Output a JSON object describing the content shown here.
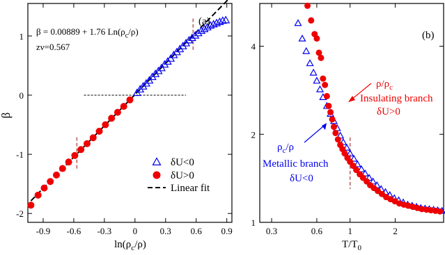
{
  "colors": {
    "metallic": "#0000ee",
    "insulating": "#ee0000",
    "fit": "#000000",
    "marker_line": "#c08080",
    "axis": "#000000"
  },
  "chart_data": [
    {
      "type": "scatter",
      "panel_label": "(a)",
      "xlabel_base": "ln(ρ",
      "xlabel_sub": "c",
      "xlabel_end": "/ρ)",
      "ylabel": "β",
      "xlim": [
        -1.05,
        0.95
      ],
      "ylim": [
        -2.15,
        1.55
      ],
      "xticks": [
        -0.9,
        -0.6,
        -0.3,
        0,
        0.3,
        0.6,
        0.9
      ],
      "xtick_labels": [
        "-0.9",
        "-0.6",
        "-0.3",
        "0",
        "0.3",
        "0.6",
        "0.9"
      ],
      "yticks": [
        -2,
        -1,
        0,
        1
      ],
      "ytick_labels": [
        "-2",
        "-1",
        "0",
        "1"
      ],
      "annotation_fit_text": "β = 0.00889 + 1.76 Ln(ρ",
      "annotation_fit_sub": "c",
      "annotation_fit_end": "/ρ)",
      "annotation_exponent": "zν=0.567",
      "fit": {
        "intercept": 0.00889,
        "slope": 1.76,
        "x_range": [
          -1.02,
          0.92
        ]
      },
      "zero_reference": {
        "y": 0,
        "x_range": [
          -0.5,
          0.5
        ]
      },
      "vertical_markers": [
        -0.57,
        0.57
      ],
      "legend": [
        {
          "label": "δU<0",
          "marker": "triangle"
        },
        {
          "label": "δU>0",
          "marker": "circle"
        },
        {
          "label": "Linear fit",
          "marker": "dashed-line"
        }
      ],
      "series": [
        {
          "name": "δU<0",
          "marker": "triangle",
          "x": [
            0.02,
            0.05,
            0.08,
            0.11,
            0.14,
            0.17,
            0.2,
            0.23,
            0.26,
            0.29,
            0.32,
            0.35,
            0.38,
            0.41,
            0.44,
            0.47,
            0.5,
            0.53,
            0.56,
            0.59,
            0.62,
            0.65,
            0.68,
            0.71,
            0.74,
            0.77,
            0.8,
            0.83,
            0.86,
            0.89
          ],
          "y": [
            0.04,
            0.1,
            0.15,
            0.2,
            0.25,
            0.31,
            0.36,
            0.41,
            0.46,
            0.52,
            0.57,
            0.62,
            0.68,
            0.73,
            0.78,
            0.83,
            0.88,
            0.93,
            0.97,
            1.01,
            1.05,
            1.09,
            1.12,
            1.15,
            1.18,
            1.2,
            1.22,
            1.24,
            1.26,
            1.27
          ]
        },
        {
          "name": "δU>0",
          "marker": "circle",
          "x": [
            -1.02,
            -0.95,
            -0.89,
            -0.83,
            -0.77,
            -0.71,
            -0.65,
            -0.59,
            -0.53,
            -0.47,
            -0.41,
            -0.35,
            -0.29,
            -0.23,
            -0.17,
            -0.11,
            -0.05
          ],
          "y": [
            -1.86,
            -1.69,
            -1.57,
            -1.46,
            -1.35,
            -1.24,
            -1.13,
            -1.02,
            -0.92,
            -0.82,
            -0.72,
            -0.61,
            -0.5,
            -0.39,
            -0.29,
            -0.19,
            -0.08
          ]
        }
      ]
    },
    {
      "type": "scatter",
      "panel_label": "(b)",
      "xlabel_base": "T/T",
      "xlabel_sub": "0",
      "xscale": "log",
      "yscale": "log",
      "xlim": [
        0.25,
        4.2
      ],
      "ylim": [
        1,
        5.6
      ],
      "xticks": [
        0.3,
        0.6,
        1,
        2
      ],
      "xtick_labels": [
        "0.3",
        "0.6",
        "1",
        "2"
      ],
      "yticks": [
        1,
        2,
        4
      ],
      "ytick_labels": [
        "1",
        "2",
        "4"
      ],
      "vertical_marker": 1,
      "annotations": [
        {
          "text": "ρ/ρ",
          "sub": "c",
          "color_key": "insulating"
        },
        {
          "text": "Insulating branch",
          "color_key": "insulating"
        },
        {
          "text": "δU>0",
          "color_key": "insulating"
        },
        {
          "text": "ρ",
          "sub": "c",
          "text_end": "/ρ",
          "color_key": "metallic"
        },
        {
          "text": "Metallic branch",
          "color_key": "metallic"
        },
        {
          "text": "δU<0",
          "color_key": "metallic"
        }
      ],
      "series": [
        {
          "name": "Metallic branch",
          "marker": "triangle",
          "x": [
            0.45,
            0.48,
            0.51,
            0.54,
            0.57,
            0.6,
            0.63,
            0.66,
            0.7,
            0.74,
            0.78,
            0.82,
            0.86,
            0.9,
            0.95,
            1.0,
            1.06,
            1.12,
            1.19,
            1.26,
            1.34,
            1.42,
            1.51,
            1.61,
            1.72,
            1.84,
            1.97,
            2.11,
            2.26,
            2.42,
            2.59,
            2.77,
            2.96,
            3.16,
            3.37,
            3.6,
            3.84,
            4.1
          ],
          "y": [
            4.8,
            4.25,
            3.85,
            3.5,
            3.25,
            3.05,
            2.85,
            2.68,
            2.5,
            2.35,
            2.22,
            2.1,
            1.98,
            1.88,
            1.8,
            1.72,
            1.65,
            1.58,
            1.52,
            1.47,
            1.42,
            1.38,
            1.34,
            1.3,
            1.27,
            1.24,
            1.21,
            1.19,
            1.17,
            1.15,
            1.14,
            1.13,
            1.12,
            1.115,
            1.11,
            1.105,
            1.1,
            1.095
          ]
        },
        {
          "name": "Insulating branch",
          "marker": "circle",
          "x": [
            0.52,
            0.55,
            0.58,
            0.6,
            0.62,
            0.64,
            0.66,
            0.68,
            0.7,
            0.72,
            0.74,
            0.76,
            0.78,
            0.8,
            0.83,
            0.86,
            0.89,
            0.92,
            0.96,
            1.0,
            1.05,
            1.1,
            1.16,
            1.22,
            1.29,
            1.36,
            1.44,
            1.53,
            1.63,
            1.74,
            1.86,
            1.99,
            2.13,
            2.28,
            2.44,
            2.62,
            2.81,
            3.01,
            3.23,
            3.46,
            3.71,
            3.97
          ],
          "y": [
            5.5,
            4.9,
            4.4,
            4.25,
            3.8,
            3.65,
            3.1,
            2.95,
            2.7,
            2.5,
            2.38,
            2.25,
            2.12,
            2.02,
            1.92,
            1.84,
            1.78,
            1.72,
            1.66,
            1.61,
            1.56,
            1.51,
            1.46,
            1.42,
            1.38,
            1.34,
            1.31,
            1.28,
            1.25,
            1.22,
            1.2,
            1.18,
            1.16,
            1.15,
            1.14,
            1.13,
            1.12,
            1.11,
            1.105,
            1.1,
            1.095,
            1.09
          ]
        }
      ]
    }
  ]
}
